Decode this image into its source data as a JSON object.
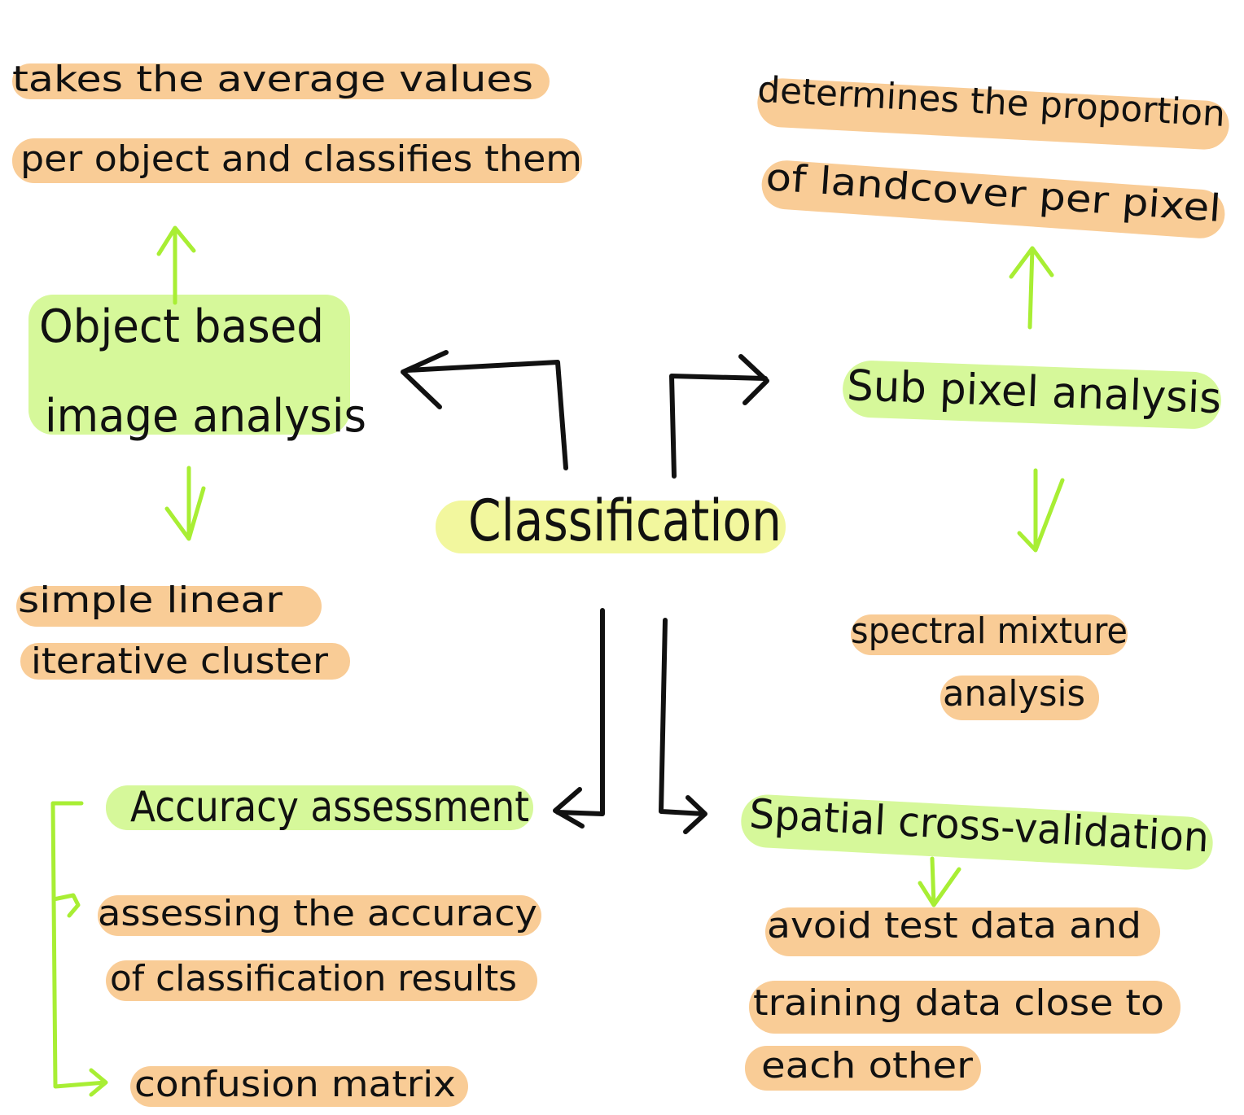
{
  "center": {
    "label": "Classification"
  },
  "nodes": [
    {
      "lines": [
        "Object based",
        "image analysis"
      ]
    },
    {
      "lines": [
        "takes the average values",
        "per object and classifies them"
      ]
    },
    {
      "lines": [
        "simple linear",
        "iterative cluster"
      ]
    },
    {
      "lines": [
        "Sub pixel analysis"
      ]
    },
    {
      "lines": [
        "determines the proportion",
        "of landcover per pixel"
      ]
    },
    {
      "lines": [
        "spectral mixture",
        "analysis"
      ]
    },
    {
      "lines": [
        "Accuracy assessment"
      ]
    },
    {
      "lines": [
        "assessing the accuracy",
        "of classification results"
      ]
    },
    {
      "lines": [
        "confusion matrix"
      ]
    },
    {
      "lines": [
        "Spatial cross-validation"
      ]
    },
    {
      "lines": [
        "avoid test data and",
        "training data close to",
        "each other"
      ]
    }
  ]
}
